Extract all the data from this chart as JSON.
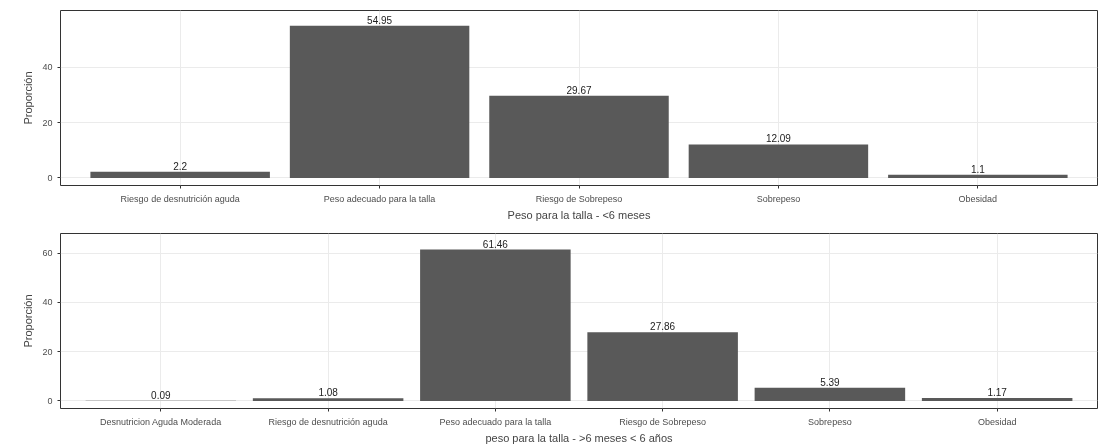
{
  "chart_data": [
    {
      "type": "bar",
      "xlabel": "Peso para la talla - <6 meses",
      "ylabel": "Proporción",
      "categories": [
        "Riesgo de desnutrición aguda",
        "Peso adecuado para la talla",
        "Riesgo de Sobrepeso",
        "Sobrepeso",
        "Obesidad"
      ],
      "values": [
        2.2,
        54.95,
        29.67,
        12.09,
        1.1
      ],
      "color": "#595959",
      "ylim": [
        -2.75,
        60.5
      ],
      "yticks": [
        0,
        20,
        40
      ],
      "grid": true,
      "data_labels": true
    },
    {
      "type": "bar",
      "xlabel": "peso para la talla - >6 meses < 6 años",
      "ylabel": "Proporción",
      "categories": [
        "Desnutricion Aguda Moderada",
        "Riesgo de desnutrición aguda",
        "Peso adecuado para la talla",
        "Riesgo de Sobrepeso",
        "Sobrepeso",
        "Obesidad"
      ],
      "values": [
        0.09,
        1.08,
        61.46,
        27.86,
        5.39,
        1.17
      ],
      "color": "#595959",
      "ylim": [
        -3.07,
        68
      ],
      "yticks": [
        0,
        20,
        40,
        60
      ],
      "grid": true,
      "data_labels": true
    }
  ]
}
